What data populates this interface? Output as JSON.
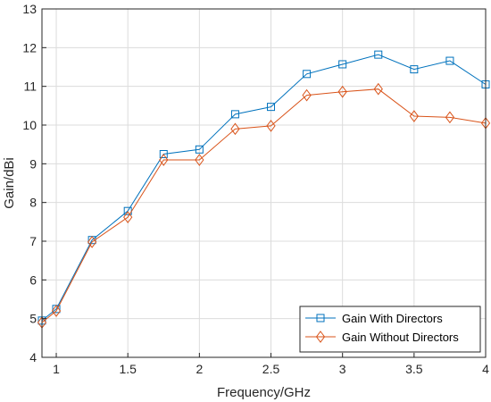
{
  "chart_data": {
    "type": "line",
    "xlabel": "Frequency/GHz",
    "ylabel": "Gain/dBi",
    "xlim": [
      0.9,
      4
    ],
    "ylim": [
      4,
      13
    ],
    "xticks": [
      1,
      1.5,
      2,
      2.5,
      3,
      3.5,
      4
    ],
    "xtick_labels": [
      "1",
      "1.5",
      "2",
      "2.5",
      "3",
      "3.5",
      "4"
    ],
    "yticks": [
      4,
      5,
      6,
      7,
      8,
      9,
      10,
      11,
      12,
      13
    ],
    "ytick_labels": [
      "4",
      "5",
      "6",
      "7",
      "8",
      "9",
      "10",
      "11",
      "12",
      "13"
    ],
    "grid": true,
    "legend_position": "bottom-right",
    "x": [
      0.9,
      1,
      1.25,
      1.5,
      1.75,
      2,
      2.25,
      2.5,
      2.75,
      3,
      3.25,
      3.5,
      3.75,
      4
    ],
    "series": [
      {
        "name": "Gain With Directors",
        "marker": "square",
        "color": "#0072BD",
        "values": [
          4.95,
          5.25,
          7.03,
          7.78,
          9.25,
          9.37,
          10.28,
          10.47,
          11.32,
          11.57,
          11.82,
          11.44,
          11.66,
          11.05
        ]
      },
      {
        "name": "Gain Without Directors",
        "marker": "diamond",
        "color": "#D95319",
        "values": [
          4.9,
          5.2,
          6.98,
          7.62,
          9.1,
          9.1,
          9.9,
          9.98,
          10.77,
          10.86,
          10.93,
          10.23,
          10.2,
          10.05
        ]
      }
    ]
  }
}
